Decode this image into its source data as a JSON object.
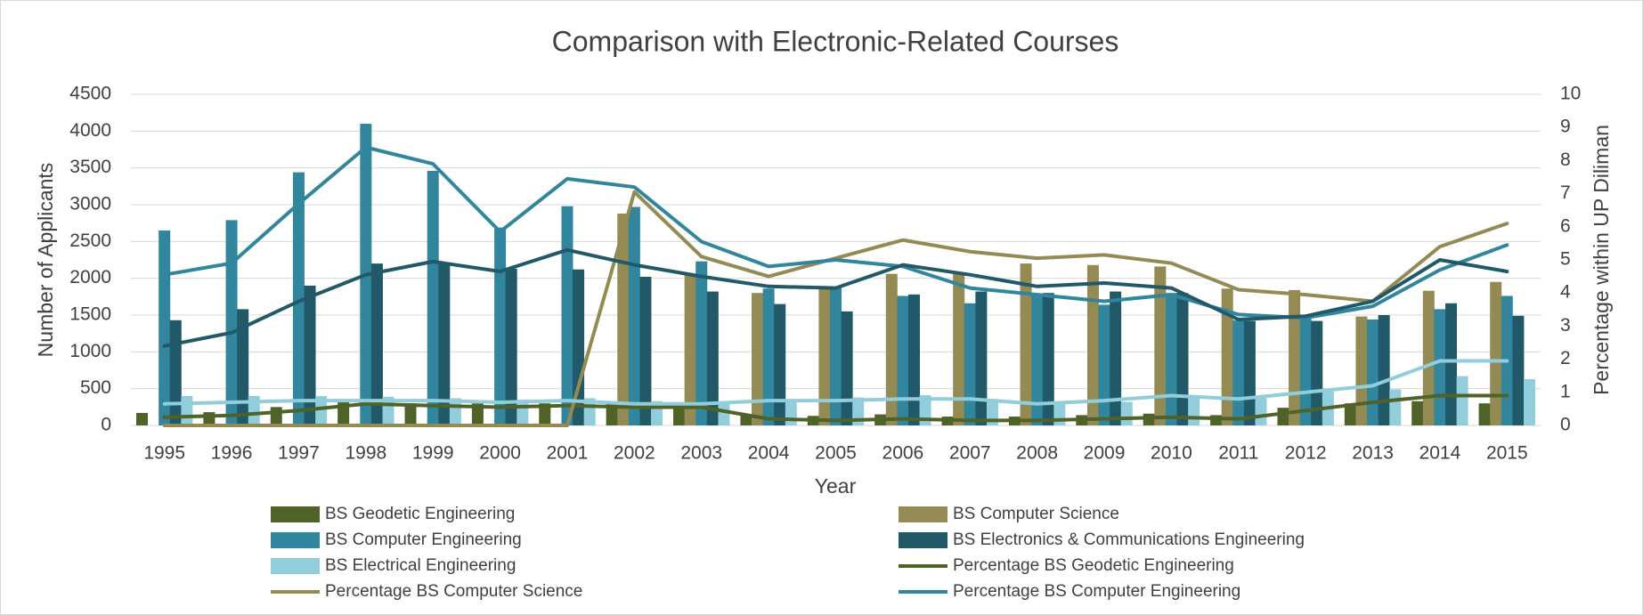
{
  "chart_data": {
    "type": "bar",
    "title": "Comparison with Electronic-Related Courses",
    "xlabel": "Year",
    "ylabel": "Number of Applicants",
    "y2label": "Percentage within UP Diliman",
    "categories": [
      "1995",
      "1996",
      "1997",
      "1998",
      "1999",
      "2000",
      "2001",
      "2002",
      "2003",
      "2004",
      "2005",
      "2006",
      "2007",
      "2008",
      "2009",
      "2010",
      "2011",
      "2012",
      "2013",
      "2014",
      "2015"
    ],
    "ylim": [
      0,
      4500
    ],
    "yticks": [
      0,
      500,
      1000,
      1500,
      2000,
      2500,
      3000,
      3500,
      4000,
      4500
    ],
    "y2lim": [
      0,
      10
    ],
    "y2ticks": [
      0,
      1,
      2,
      3,
      4,
      5,
      6,
      7,
      8,
      9,
      10
    ],
    "grid": true,
    "legend": "bottom",
    "series": [
      {
        "name": "BS Geodetic Engineering",
        "type": "bar",
        "color": "#4f6228",
        "values": [
          170,
          180,
          250,
          330,
          300,
          300,
          300,
          290,
          280,
          150,
          130,
          150,
          120,
          120,
          140,
          160,
          140,
          240,
          300,
          330,
          300
        ]
      },
      {
        "name": "BS Computer Science",
        "type": "bar",
        "color": "#948a54",
        "values": [
          null,
          null,
          null,
          null,
          null,
          null,
          null,
          2880,
          2050,
          1800,
          1880,
          2060,
          2080,
          2200,
          2180,
          2160,
          1860,
          1840,
          1480,
          1830,
          1950
        ]
      },
      {
        "name": "BS Computer Engineering",
        "type": "bar",
        "color": "#31859c",
        "values": [
          2650,
          2790,
          3440,
          4100,
          3460,
          2690,
          2980,
          2970,
          2230,
          1860,
          1870,
          1760,
          1660,
          1770,
          1640,
          1800,
          1430,
          1460,
          1440,
          1580,
          1760
        ]
      },
      {
        "name": "BS Electronics & Communications Engineering",
        "type": "bar",
        "color": "#215968",
        "values": [
          1430,
          1580,
          1900,
          2200,
          2200,
          2130,
          2120,
          2020,
          1820,
          1650,
          1550,
          1780,
          1820,
          1800,
          1820,
          1800,
          1420,
          1420,
          1500,
          1660,
          1490
        ]
      },
      {
        "name": "BS Electrical Engineering",
        "type": "bar",
        "color": "#92cddc",
        "values": [
          400,
          400,
          400,
          390,
          370,
          350,
          370,
          330,
          300,
          320,
          380,
          410,
          360,
          300,
          320,
          410,
          370,
          460,
          490,
          670,
          630
        ]
      },
      {
        "name": "Percentage BS Geodetic Engineering",
        "type": "line",
        "axis": "y2",
        "color": "#4f6228",
        "values": [
          0.25,
          0.3,
          0.45,
          0.65,
          0.6,
          0.55,
          0.6,
          0.55,
          0.55,
          0.2,
          0.15,
          0.2,
          0.15,
          0.15,
          0.2,
          0.25,
          0.2,
          0.45,
          0.7,
          0.9,
          0.9
        ]
      },
      {
        "name": "Percentage BS Computer Science",
        "type": "line",
        "axis": "y2",
        "color": "#948a54",
        "values": [
          0,
          0,
          0,
          0,
          0,
          0,
          0,
          7.05,
          5.1,
          4.5,
          5.05,
          5.6,
          5.25,
          5.05,
          5.15,
          4.9,
          4.1,
          3.95,
          3.75,
          5.4,
          6.1
        ]
      },
      {
        "name": "Percentage BS Computer Engineering",
        "type": "line",
        "axis": "y2",
        "color": "#31859c",
        "values": [
          4.55,
          4.9,
          6.7,
          8.4,
          7.9,
          5.85,
          7.45,
          7.2,
          5.55,
          4.8,
          5.0,
          4.8,
          4.15,
          3.95,
          3.75,
          3.95,
          3.35,
          3.25,
          3.6,
          4.7,
          5.45
        ]
      },
      {
        "type": "line",
        "axis": "y2",
        "color": "#215968",
        "values": [
          2.4,
          2.8,
          3.75,
          4.55,
          4.95,
          4.65,
          5.3,
          4.85,
          4.5,
          4.2,
          4.15,
          4.85,
          4.55,
          4.2,
          4.3,
          4.15,
          3.2,
          3.3,
          3.75,
          5.0,
          4.65
        ]
      },
      {
        "type": "line",
        "axis": "y2",
        "color": "#92cddc",
        "values": [
          0.65,
          0.7,
          0.75,
          0.75,
          0.75,
          0.7,
          0.75,
          0.65,
          0.65,
          0.75,
          0.75,
          0.8,
          0.8,
          0.65,
          0.75,
          0.9,
          0.8,
          1.0,
          1.2,
          1.95,
          1.95
        ]
      }
    ]
  }
}
